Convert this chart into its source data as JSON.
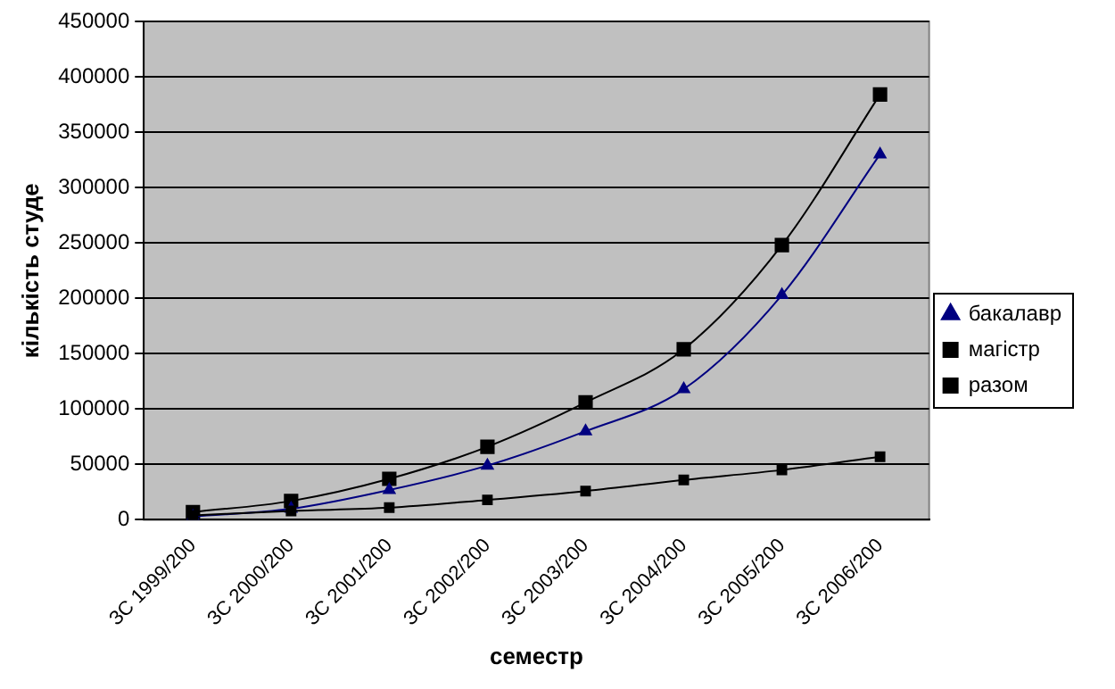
{
  "chart_data": {
    "type": "line",
    "xlabel": "семестр",
    "ylabel": "кількість студе",
    "categories": [
      "ЗС 1999/200",
      "ЗС 2000/200",
      "ЗС 2001/200",
      "ЗС 2002/200",
      "ЗС 2003/200",
      "ЗС 2004/200",
      "ЗС 2005/200",
      "ЗС 2006/200"
    ],
    "series": [
      {
        "name": "бакалавр",
        "color": "#000080",
        "marker": "triangle",
        "values": [
          3000,
          10000,
          27000,
          49000,
          80000,
          118000,
          203000,
          330000
        ]
      },
      {
        "name": "магістр",
        "color": "#000000",
        "marker": "square",
        "values": [
          4000,
          8000,
          11000,
          18000,
          26000,
          36000,
          45000,
          57000
        ]
      },
      {
        "name": "разом",
        "color": "#000000",
        "marker": "square",
        "values": [
          7000,
          17000,
          37000,
          66000,
          106000,
          154000,
          248000,
          384000
        ]
      }
    ],
    "ylim": [
      0,
      450000
    ],
    "yticks": [
      0,
      50000,
      100000,
      150000,
      200000,
      250000,
      300000,
      350000,
      400000,
      450000
    ],
    "grid": "y",
    "legend": "right"
  }
}
